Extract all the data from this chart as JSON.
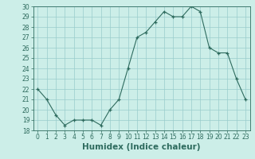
{
  "x": [
    0,
    1,
    2,
    3,
    4,
    5,
    6,
    7,
    8,
    9,
    10,
    11,
    12,
    13,
    14,
    15,
    16,
    17,
    18,
    19,
    20,
    21,
    22,
    23
  ],
  "y": [
    22,
    21,
    19.5,
    18.5,
    19,
    19,
    19,
    18.5,
    20,
    21,
    24,
    27,
    27.5,
    28.5,
    29.5,
    29,
    29,
    30,
    29.5,
    26,
    25.5,
    25.5,
    23,
    21
  ],
  "xlabel": "Humidex (Indice chaleur)",
  "ylim": [
    18,
    30
  ],
  "xlim": [
    -0.5,
    23.5
  ],
  "yticks": [
    18,
    19,
    20,
    21,
    22,
    23,
    24,
    25,
    26,
    27,
    28,
    29,
    30
  ],
  "xticks": [
    0,
    1,
    2,
    3,
    4,
    5,
    6,
    7,
    8,
    9,
    10,
    11,
    12,
    13,
    14,
    15,
    16,
    17,
    18,
    19,
    20,
    21,
    22,
    23
  ],
  "line_color": "#2e6b5e",
  "bg_color": "#cceee8",
  "grid_color": "#99cccc",
  "tick_label_fontsize": 5.5,
  "xlabel_fontsize": 7.5
}
